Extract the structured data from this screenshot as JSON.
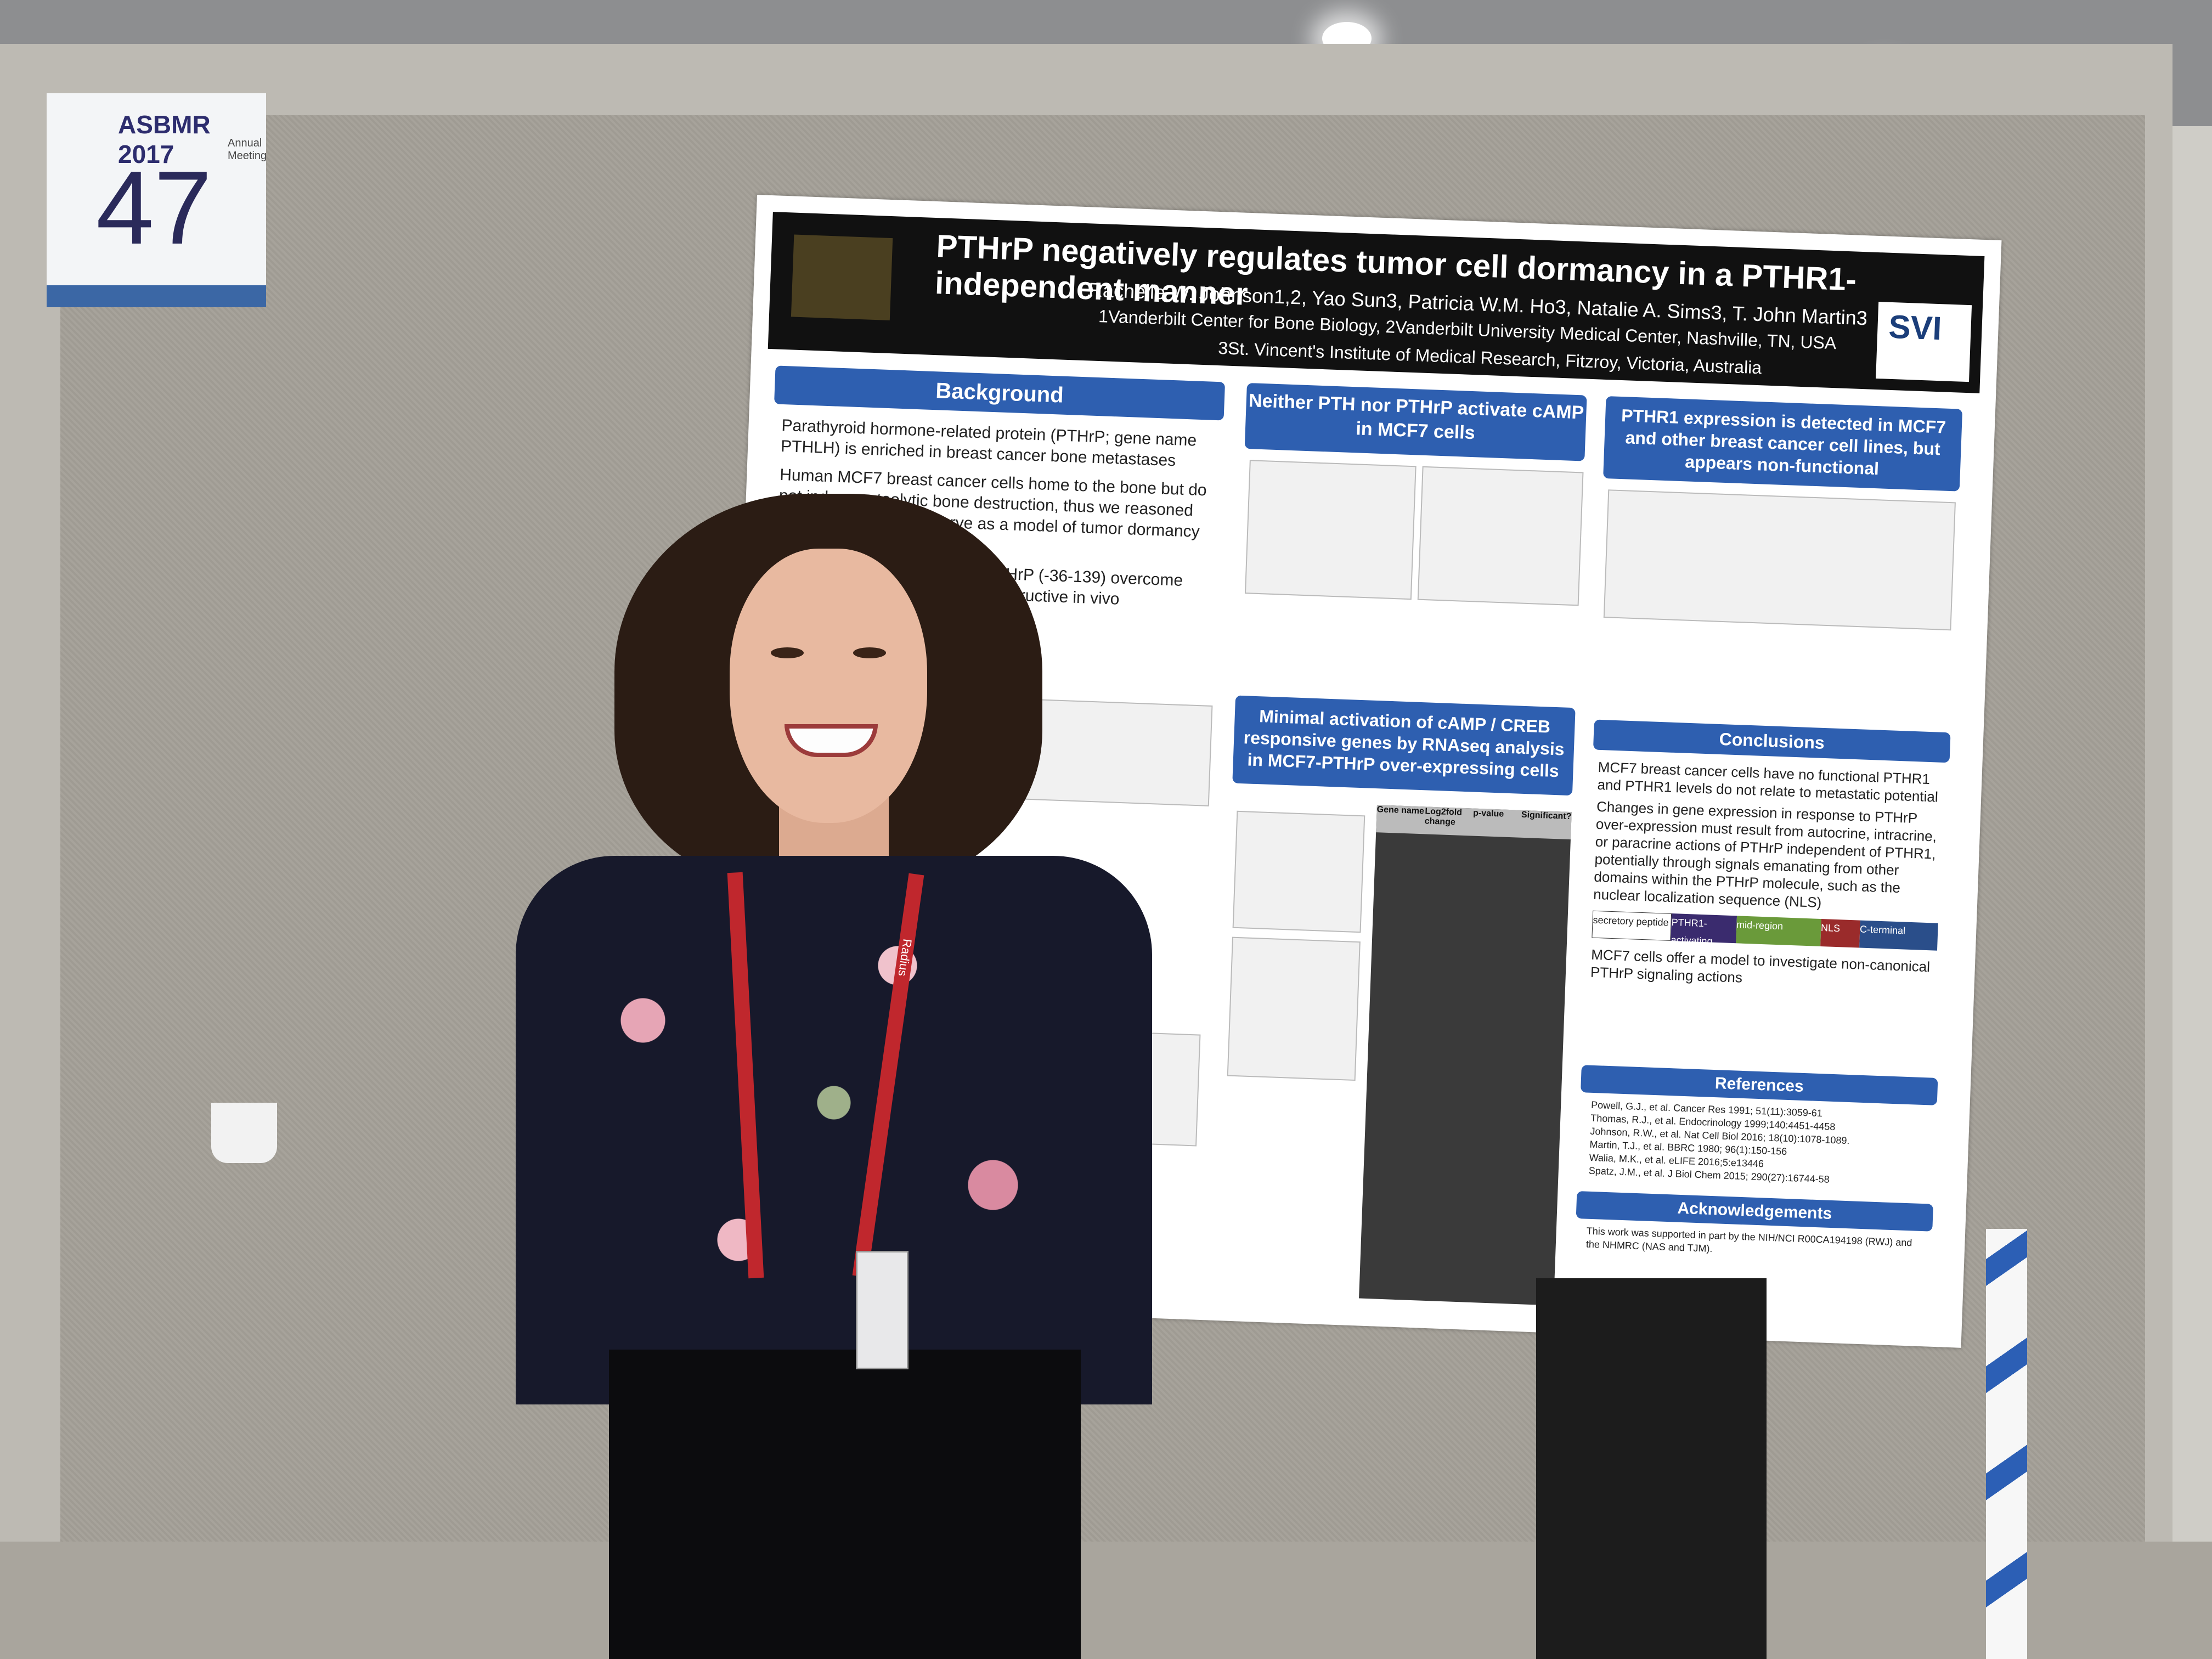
{
  "booth": {
    "conference": "ASBMR 2017",
    "conference_sub": "Annual Meeting",
    "number": "47"
  },
  "poster": {
    "title": "PTHrP negatively regulates tumor cell dormancy in a PTHR1-independent manner",
    "authors": "Rachelle W. Johnson1,2, Yao Sun3, Patricia W.M. Ho3, Natalie A. Sims3, T. John Martin3",
    "affiliation_1": "1Vanderbilt Center for Bone Biology, 2Vanderbilt University Medical Center, Nashville, TN, USA",
    "affiliation_2": "3St. Vincent's Institute of Medical Research, Fitzroy, Victoria, Australia",
    "logo_right": "SVI",
    "sections": {
      "background": "Background",
      "camp": "Neither PTH nor PTHrP activate cAMP in MCF7 cells",
      "pthr1": "PTHR1 expression is detected in MCF7 and other breast cancer cell lines, but appears non-functional",
      "creb": "Minimal activation of cAMP / CREB responsive genes by RNAseq analysis in MCF7-PTHrP over-expressing cells",
      "conclusions": "Conclusions",
      "references": "References",
      "acknowledgements": "Acknowledgements"
    },
    "background_bullets": [
      "Parathyroid hormone-related protein (PTHrP; gene name PTHLH) is enriched in breast cancer bone metastases",
      "Human MCF7 breast cancer cells home to the bone but do not induce osteolytic bone destruction, thus we reasoned that MCF7 cells may serve as a model of tumor dormancy in the bone marrow",
      "MCF7 cells over-expressing PTHrP (-36-139) overcome dormancy and become bone destructive in vivo"
    ],
    "conclusions_bullets": [
      "MCF7 breast cancer cells have no functional PTHR1 and PTHR1 levels do not relate to metastatic potential",
      "Changes in gene expression in response to PTHrP over-expression must result from autocrine, intracrine, or paracrine actions of PTHrP independent of PTHR1, potentially through signals emanating from other domains within the PTHrP molecule, such as the nuclear localization sequence (NLS)",
      "MCF7 cells offer a model to investigate non-canonical PTHrP signaling actions"
    ],
    "references": [
      "Powell, G.J., et al. Cancer Res 1991; 51(11):3059-61",
      "Thomas, R.J., et al. Endocrinology 1999;140:4451-4458",
      "Johnson, R.W., et al. Nat Cell Biol 2016; 18(10):1078-1089.",
      "Martin, T.J., et al. BBRC 1980; 96(1):150-156",
      "Walia, M.K., et al. eLIFE 2016;5:e13446",
      "Spatz, J.M., et al. J Biol Chem 2015; 290(27):16744-58"
    ],
    "acknowledgements_text": "This work was supported in part by the NIH/NCI R00CA194198 (RWJ) and the NHMRC (NAS and TJM).",
    "domains": [
      "secretory peptide",
      "PTHR1-activating",
      "mid-region",
      "NLS",
      "C-terminal"
    ],
    "table_header": [
      "Gene name",
      "Log2fold change",
      "p-value",
      "Significant?"
    ]
  },
  "lanyard_text": "Radius"
}
